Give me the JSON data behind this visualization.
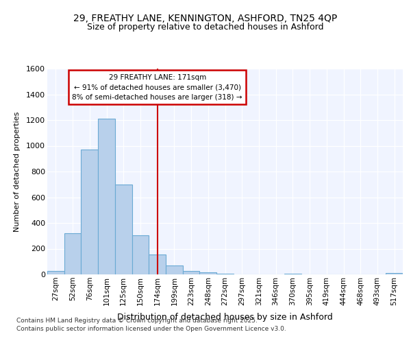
{
  "title_line1": "29, FREATHY LANE, KENNINGTON, ASHFORD, TN25 4QP",
  "title_line2": "Size of property relative to detached houses in Ashford",
  "xlabel": "Distribution of detached houses by size in Ashford",
  "ylabel": "Number of detached properties",
  "bar_labels": [
    "27sqm",
    "52sqm",
    "76sqm",
    "101sqm",
    "125sqm",
    "150sqm",
    "174sqm",
    "199sqm",
    "223sqm",
    "248sqm",
    "272sqm",
    "297sqm",
    "321sqm",
    "346sqm",
    "370sqm",
    "395sqm",
    "419sqm",
    "444sqm",
    "468sqm",
    "493sqm",
    "517sqm"
  ],
  "bar_values": [
    25,
    320,
    970,
    1210,
    700,
    305,
    155,
    70,
    25,
    15,
    5,
    0,
    0,
    0,
    5,
    0,
    0,
    0,
    0,
    0,
    10
  ],
  "bar_color": "#b8d0eb",
  "bar_edge_color": "#6aaad4",
  "vline_color": "#cc0000",
  "vline_index": 6,
  "annotation_line1": "29 FREATHY LANE: 171sqm",
  "annotation_line2": "← 91% of detached houses are smaller (3,470)",
  "annotation_line3": "8% of semi-detached houses are larger (318) →",
  "annotation_box_edge": "#cc0000",
  "background_color": "#ffffff",
  "plot_bg_color": "#f0f4ff",
  "ylim": [
    0,
    1600
  ],
  "yticks": [
    0,
    200,
    400,
    600,
    800,
    1000,
    1200,
    1400,
    1600
  ],
  "footnote_line1": "Contains HM Land Registry data © Crown copyright and database right 2025.",
  "footnote_line2": "Contains public sector information licensed under the Open Government Licence v3.0."
}
